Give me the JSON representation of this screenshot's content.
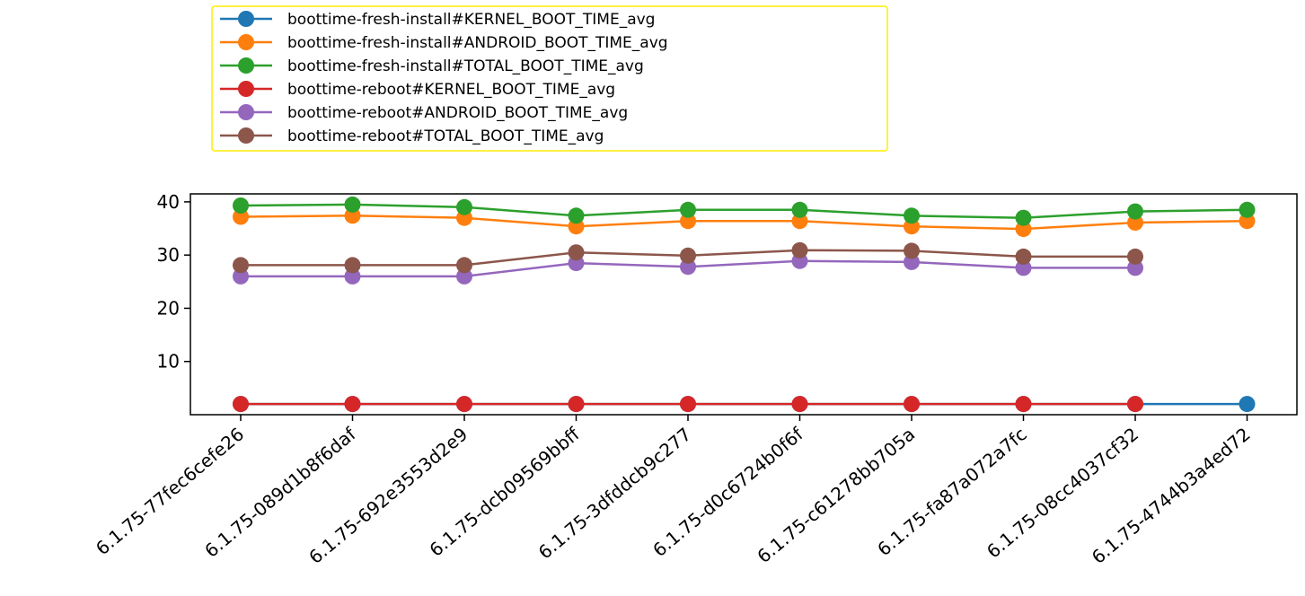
{
  "chart_data": {
    "type": "line",
    "title": "",
    "xlabel": "",
    "ylabel": "",
    "categories": [
      "6.1.75-77fec6cefe26",
      "6.1.75-089d1b8f6daf",
      "6.1.75-692e3553d2e9",
      "6.1.75-dcb09569bbff",
      "6.1.75-3dfddcb9c277",
      "6.1.75-d0c6724b0f6f",
      "6.1.75-c61278bb705a",
      "6.1.75-fa87a072a7fc",
      "6.1.75-08cc4037cf32",
      "6.1.75-4744b3a4ed72"
    ],
    "yticks": [
      10,
      20,
      30,
      40
    ],
    "ylim": [
      0,
      41.5
    ],
    "grid": false,
    "legend_position": "top-left",
    "series": [
      {
        "name": "boottime-fresh-install#KERNEL_BOOT_TIME_avg",
        "color": "#1f77b4",
        "values": [
          2.0,
          2.0,
          2.0,
          2.0,
          2.0,
          2.0,
          2.0,
          2.0,
          2.0,
          2.0
        ]
      },
      {
        "name": "boottime-fresh-install#ANDROID_BOOT_TIME_avg",
        "color": "#ff7f0e",
        "values": [
          37.2,
          37.4,
          37.0,
          35.4,
          36.4,
          36.4,
          35.4,
          34.9,
          36.1,
          36.4
        ]
      },
      {
        "name": "boottime-fresh-install#TOTAL_BOOT_TIME_avg",
        "color": "#2ca02c",
        "values": [
          39.3,
          39.5,
          39.0,
          37.4,
          38.5,
          38.5,
          37.4,
          37.0,
          38.2,
          38.5
        ]
      },
      {
        "name": "boottime-reboot#KERNEL_BOOT_TIME_avg",
        "color": "#d62728",
        "values": [
          2.0,
          2.0,
          2.0,
          2.0,
          2.0,
          2.0,
          2.0,
          2.0,
          2.0,
          null
        ]
      },
      {
        "name": "boottime-reboot#ANDROID_BOOT_TIME_avg",
        "color": "#9467bd",
        "values": [
          26.0,
          26.0,
          26.0,
          28.5,
          27.8,
          28.9,
          28.7,
          27.6,
          27.6,
          null
        ]
      },
      {
        "name": "boottime-reboot#TOTAL_BOOT_TIME_avg",
        "color": "#8c564b",
        "values": [
          28.1,
          28.1,
          28.1,
          30.5,
          29.9,
          30.9,
          30.8,
          29.7,
          29.7,
          null
        ]
      }
    ]
  }
}
